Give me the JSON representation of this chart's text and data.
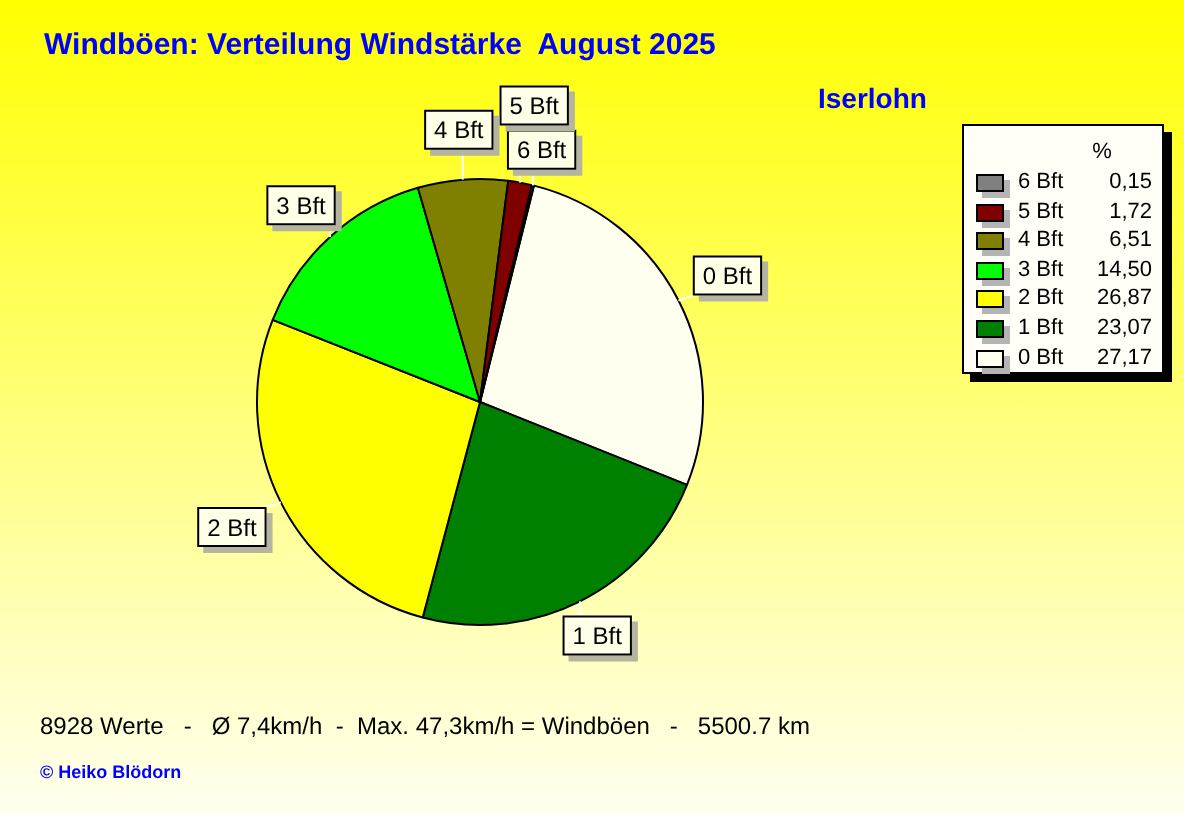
{
  "chart_data": {
    "type": "pie",
    "title": "Windböen: Verteilung Windstärke  August 2025",
    "subtitle": "Iserlohn",
    "categories": [
      "0 Bft",
      "1 Bft",
      "2 Bft",
      "3 Bft",
      "4 Bft",
      "5 Bft",
      "6 Bft"
    ],
    "values": [
      27.17,
      23.07,
      26.87,
      14.5,
      6.51,
      1.72,
      0.15
    ],
    "colors": [
      "#fffff0",
      "#008000",
      "#ffff00",
      "#00ff00",
      "#808000",
      "#800000",
      "#808080"
    ],
    "value_labels": [
      "27,17",
      "23,07",
      "26,87",
      "14,50",
      "6,51",
      "1,72",
      "0,15"
    ],
    "legend": "top right",
    "legend_title": "%",
    "annotations": [
      "8928 Werte   -   Ø 7,4km/h  -  Max. 47,3km/h = Windböen   -   5500.7 km",
      "© Heiko Blödorn"
    ]
  }
}
